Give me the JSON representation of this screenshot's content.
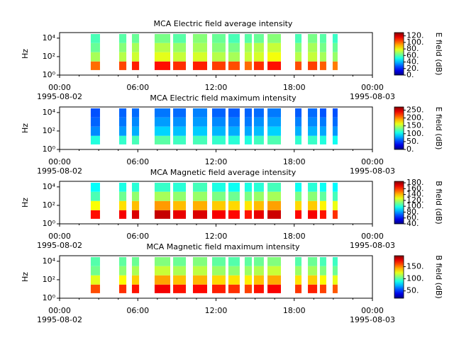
{
  "chart_data": [
    {
      "type": "spectrogram",
      "title": "MCA  Electric field average intensity",
      "ylabel": "Hz",
      "log_y": true,
      "colormap": "jet",
      "xlim": [
        0,
        24
      ],
      "xticks": [
        {
          "value": 0,
          "label": "00:00",
          "date": "1995-08-02"
        },
        {
          "value": 6,
          "label": "06:00"
        },
        {
          "value": 12,
          "label": "12:00"
        },
        {
          "value": 18,
          "label": "18:00"
        },
        {
          "value": 24,
          "label": "00:00",
          "date": "1995-08-03"
        }
      ],
      "xminorticks": [
        1.5,
        3,
        4.5,
        7.5,
        9,
        10.5,
        13.5,
        15,
        16.5,
        19.5,
        21,
        22.5
      ],
      "ylim": [
        1,
        40000
      ],
      "yticks": [
        {
          "value": 1,
          "label": "10⁰"
        },
        {
          "value": 100,
          "label": "10²"
        },
        {
          "value": 10000,
          "label": "10⁴"
        }
      ],
      "y_edges": [
        3.5,
        30,
        300,
        3000,
        28000
      ],
      "segments": [
        [
          2.39,
          3.1
        ],
        [
          4.57,
          5.12
        ],
        [
          5.55,
          6.1
        ],
        [
          7.29,
          8.49
        ],
        [
          8.71,
          9.69
        ],
        [
          10.23,
          11.32
        ],
        [
          11.7,
          12.73
        ],
        [
          12.95,
          13.82
        ],
        [
          14.2,
          14.75
        ],
        [
          14.91,
          15.67
        ],
        [
          15.95,
          16.98
        ],
        [
          18.07,
          18.56
        ],
        [
          19.05,
          19.76
        ],
        [
          19.97,
          20.46
        ],
        [
          20.95,
          21.33
        ]
      ],
      "values": [
        [
          100,
          70,
          62,
          58
        ],
        [
          105,
          72,
          66,
          60
        ],
        [
          110,
          75,
          70,
          62
        ],
        [
          112,
          78,
          72,
          64
        ],
        [
          108,
          74,
          68,
          60
        ],
        [
          110,
          76,
          70,
          66
        ],
        [
          106,
          72,
          66,
          62
        ],
        [
          104,
          70,
          64,
          58
        ],
        [
          100,
          74,
          70,
          60
        ],
        [
          108,
          76,
          72,
          62
        ],
        [
          112,
          80,
          74,
          66
        ],
        [
          104,
          72,
          66,
          58
        ],
        [
          106,
          74,
          70,
          64
        ],
        [
          102,
          70,
          64,
          60
        ],
        [
          98,
          68,
          62,
          56
        ]
      ],
      "colorbar_label": "E field (dB)",
      "clim": [
        0,
        130
      ],
      "cticks": [
        {
          "value": 0,
          "label": "0."
        },
        {
          "value": 20,
          "label": "20."
        },
        {
          "value": 40,
          "label": "40."
        },
        {
          "value": 60,
          "label": "60."
        },
        {
          "value": 80,
          "label": "80."
        },
        {
          "value": 100,
          "label": "100."
        },
        {
          "value": 120,
          "label": "120."
        }
      ]
    },
    {
      "type": "spectrogram",
      "title": "MCA  Electric field maximum intensity",
      "ylabel": "Hz",
      "log_y": true,
      "colormap": "jet",
      "xlim": [
        0,
        24
      ],
      "xticks": [
        {
          "value": 0,
          "label": "00:00",
          "date": "1995-08-02"
        },
        {
          "value": 6,
          "label": "06:00"
        },
        {
          "value": 12,
          "label": "12:00"
        },
        {
          "value": 18,
          "label": "18:00"
        },
        {
          "value": 24,
          "label": "00:00",
          "date": "1995-08-03"
        }
      ],
      "xminorticks": [
        1.5,
        3,
        4.5,
        7.5,
        9,
        10.5,
        13.5,
        15,
        16.5,
        19.5,
        21,
        22.5
      ],
      "ylim": [
        1,
        40000
      ],
      "yticks": [
        {
          "value": 1,
          "label": "10⁰"
        },
        {
          "value": 100,
          "label": "10²"
        },
        {
          "value": 10000,
          "label": "10⁴"
        }
      ],
      "y_edges": [
        3.5,
        30,
        300,
        3000,
        28000
      ],
      "segments": [
        [
          2.39,
          3.1
        ],
        [
          4.57,
          5.12
        ],
        [
          5.55,
          6.1
        ],
        [
          7.29,
          8.49
        ],
        [
          8.71,
          9.69
        ],
        [
          10.23,
          11.32
        ],
        [
          11.7,
          12.73
        ],
        [
          12.95,
          13.82
        ],
        [
          14.2,
          14.75
        ],
        [
          14.91,
          15.67
        ],
        [
          15.95,
          16.98
        ],
        [
          18.07,
          18.56
        ],
        [
          19.05,
          19.76
        ],
        [
          19.97,
          20.46
        ],
        [
          20.95,
          21.33
        ]
      ],
      "values": [
        [
          110,
          70,
          60,
          55
        ],
        [
          115,
          75,
          65,
          60
        ],
        [
          120,
          80,
          70,
          62
        ],
        [
          125,
          90,
          75,
          65
        ],
        [
          118,
          85,
          72,
          62
        ],
        [
          120,
          88,
          75,
          68
        ],
        [
          115,
          82,
          70,
          60
        ],
        [
          112,
          80,
          68,
          58
        ],
        [
          110,
          78,
          66,
          60
        ],
        [
          118,
          84,
          72,
          62
        ],
        [
          122,
          90,
          76,
          66
        ],
        [
          114,
          80,
          68,
          58
        ],
        [
          116,
          82,
          70,
          62
        ],
        [
          110,
          78,
          66,
          56
        ],
        [
          105,
          74,
          62,
          55
        ]
      ],
      "colorbar_label": "E field (dB)",
      "clim": [
        0,
        270
      ],
      "cticks": [
        {
          "value": 0,
          "label": "0."
        },
        {
          "value": 50,
          "label": "50."
        },
        {
          "value": 100,
          "label": "100."
        },
        {
          "value": 150,
          "label": "150."
        },
        {
          "value": 200,
          "label": "200."
        },
        {
          "value": 250,
          "label": "250."
        }
      ]
    },
    {
      "type": "spectrogram",
      "title": "MCA  Magnetic field average intensity",
      "ylabel": "Hz",
      "log_y": true,
      "colormap": "jet",
      "xlim": [
        0,
        24
      ],
      "xticks": [
        {
          "value": 0,
          "label": "00:00",
          "date": "1995-08-02"
        },
        {
          "value": 6,
          "label": "06:00"
        },
        {
          "value": 12,
          "label": "12:00"
        },
        {
          "value": 18,
          "label": "18:00"
        },
        {
          "value": 24,
          "label": "00:00",
          "date": "1995-08-03"
        }
      ],
      "xminorticks": [
        1.5,
        3,
        4.5,
        7.5,
        9,
        10.5,
        13.5,
        15,
        16.5,
        19.5,
        21,
        22.5
      ],
      "ylim": [
        1,
        40000
      ],
      "yticks": [
        {
          "value": 1,
          "label": "10⁰"
        },
        {
          "value": 100,
          "label": "10²"
        },
        {
          "value": 10000,
          "label": "10⁴"
        }
      ],
      "y_edges": [
        3.5,
        30,
        300,
        3000,
        28000
      ],
      "segments": [
        [
          2.39,
          3.1
        ],
        [
          4.57,
          5.12
        ],
        [
          5.55,
          6.1
        ],
        [
          7.29,
          8.49
        ],
        [
          8.71,
          9.69
        ],
        [
          10.23,
          11.32
        ],
        [
          11.7,
          12.73
        ],
        [
          12.95,
          13.82
        ],
        [
          14.2,
          14.75
        ],
        [
          14.91,
          15.67
        ],
        [
          15.95,
          16.98
        ],
        [
          18.07,
          18.56
        ],
        [
          19.05,
          19.76
        ],
        [
          19.97,
          20.46
        ],
        [
          20.95,
          21.33
        ]
      ],
      "values": [
        [
          165,
          130,
          105,
          95
        ],
        [
          168,
          135,
          110,
          98
        ],
        [
          172,
          140,
          115,
          100
        ],
        [
          175,
          145,
          118,
          102
        ],
        [
          170,
          140,
          115,
          100
        ],
        [
          172,
          142,
          116,
          104
        ],
        [
          168,
          138,
          112,
          98
        ],
        [
          166,
          136,
          110,
          96
        ],
        [
          164,
          134,
          112,
          98
        ],
        [
          170,
          140,
          116,
          100
        ],
        [
          174,
          144,
          118,
          104
        ],
        [
          166,
          136,
          112,
          96
        ],
        [
          168,
          138,
          114,
          100
        ],
        [
          164,
          132,
          108,
          96
        ],
        [
          160,
          128,
          104,
          94
        ]
      ],
      "colorbar_label": "B field (dB)",
      "clim": [
        40,
        185
      ],
      "cticks": [
        {
          "value": 40,
          "label": "40."
        },
        {
          "value": 60,
          "label": "60."
        },
        {
          "value": 80,
          "label": "80."
        },
        {
          "value": 100,
          "label": "100."
        },
        {
          "value": 120,
          "label": "120."
        },
        {
          "value": 140,
          "label": "140."
        },
        {
          "value": 160,
          "label": "160."
        },
        {
          "value": 180,
          "label": "180."
        }
      ]
    },
    {
      "type": "spectrogram",
      "title": "MCA  Magnetic field maximum intensity",
      "ylabel": "Hz",
      "log_y": true,
      "colormap": "jet",
      "xlim": [
        0,
        24
      ],
      "xticks": [
        {
          "value": 0,
          "label": "00:00",
          "date": "1995-08-02"
        },
        {
          "value": 6,
          "label": "06:00"
        },
        {
          "value": 12,
          "label": "12:00"
        },
        {
          "value": 18,
          "label": "18:00"
        },
        {
          "value": 24,
          "label": "00:00",
          "date": "1995-08-03"
        }
      ],
      "xminorticks": [
        1.5,
        3,
        4.5,
        7.5,
        9,
        10.5,
        13.5,
        15,
        16.5,
        19.5,
        21,
        22.5
      ],
      "ylim": [
        1,
        40000
      ],
      "yticks": [
        {
          "value": 1,
          "label": "10⁰"
        },
        {
          "value": 100,
          "label": "10²"
        },
        {
          "value": 10000,
          "label": "10⁴"
        }
      ],
      "y_edges": [
        3.5,
        30,
        300,
        3000,
        28000
      ],
      "segments": [
        [
          2.39,
          3.1
        ],
        [
          4.57,
          5.12
        ],
        [
          5.55,
          6.1
        ],
        [
          7.29,
          8.49
        ],
        [
          8.71,
          9.69
        ],
        [
          10.23,
          11.32
        ],
        [
          11.7,
          12.73
        ],
        [
          12.95,
          13.82
        ],
        [
          14.2,
          14.75
        ],
        [
          14.91,
          15.67
        ],
        [
          15.95,
          16.98
        ],
        [
          18.07,
          18.56
        ],
        [
          19.05,
          19.76
        ],
        [
          19.97,
          20.46
        ],
        [
          20.95,
          21.33
        ]
      ],
      "values": [
        [
          160,
          125,
          105,
          100
        ],
        [
          165,
          130,
          110,
          102
        ],
        [
          170,
          138,
          115,
          104
        ],
        [
          175,
          145,
          120,
          108
        ],
        [
          170,
          140,
          115,
          104
        ],
        [
          172,
          142,
          118,
          108
        ],
        [
          168,
          136,
          112,
          102
        ],
        [
          165,
          134,
          110,
          100
        ],
        [
          162,
          132,
          112,
          102
        ],
        [
          170,
          140,
          116,
          104
        ],
        [
          174,
          144,
          120,
          108
        ],
        [
          164,
          134,
          112,
          100
        ],
        [
          168,
          138,
          114,
          104
        ],
        [
          162,
          130,
          108,
          98
        ],
        [
          158,
          126,
          104,
          96
        ]
      ],
      "colorbar_label": "B field (dB)",
      "clim": [
        20,
        195
      ],
      "cticks": [
        {
          "value": 50,
          "label": "50."
        },
        {
          "value": 100,
          "label": "100."
        },
        {
          "value": 150,
          "label": "150."
        }
      ]
    }
  ]
}
